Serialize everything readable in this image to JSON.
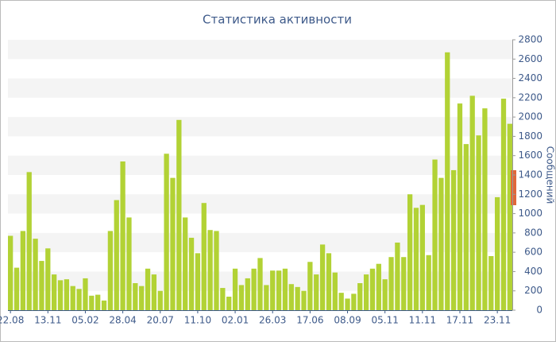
{
  "chart_data": {
    "type": "bar",
    "title": "Статистика активности",
    "y_label": "Сообщений",
    "categories": [
      "22.08",
      null,
      null,
      null,
      null,
      null,
      "13.11",
      null,
      null,
      null,
      null,
      null,
      "05.02",
      null,
      null,
      null,
      null,
      null,
      "28.04",
      null,
      null,
      null,
      null,
      null,
      "20.07",
      null,
      null,
      null,
      null,
      null,
      "11.10",
      null,
      null,
      null,
      null,
      null,
      "02.01",
      null,
      null,
      null,
      null,
      null,
      "26.03",
      null,
      null,
      null,
      null,
      null,
      "17.06",
      null,
      null,
      null,
      null,
      null,
      "08.09",
      null,
      null,
      null,
      null,
      null,
      "05.11",
      null,
      null,
      null,
      null,
      null,
      "11.11",
      null,
      null,
      null,
      null,
      null,
      "17.11",
      null,
      null,
      null,
      null,
      null,
      "23.11",
      null,
      null
    ],
    "values": [
      770,
      440,
      820,
      1430,
      740,
      510,
      640,
      370,
      310,
      320,
      250,
      220,
      330,
      150,
      160,
      100,
      820,
      1140,
      1540,
      960,
      280,
      250,
      430,
      370,
      200,
      1620,
      1370,
      1970,
      960,
      750,
      590,
      1110,
      830,
      820,
      230,
      140,
      430,
      260,
      330,
      430,
      540,
      260,
      410,
      410,
      430,
      270,
      240,
      200,
      500,
      370,
      680,
      590,
      390,
      180,
      120,
      170,
      280,
      370,
      430,
      480,
      320,
      550,
      700,
      550,
      1200,
      1060,
      1090,
      570,
      1560,
      1370,
      2670,
      1450,
      2140,
      1720,
      2220,
      1810,
      2090,
      560,
      1170,
      2190,
      1930
    ],
    "color": "#b2d235",
    "band_color": "#f4f4f4",
    "ylim": [
      0,
      2800
    ],
    "yticks": [
      0,
      200,
      400,
      600,
      800,
      1000,
      1200,
      1400,
      1600,
      1800,
      2000,
      2200,
      2400,
      2600,
      2800
    ],
    "grid": "bands"
  }
}
